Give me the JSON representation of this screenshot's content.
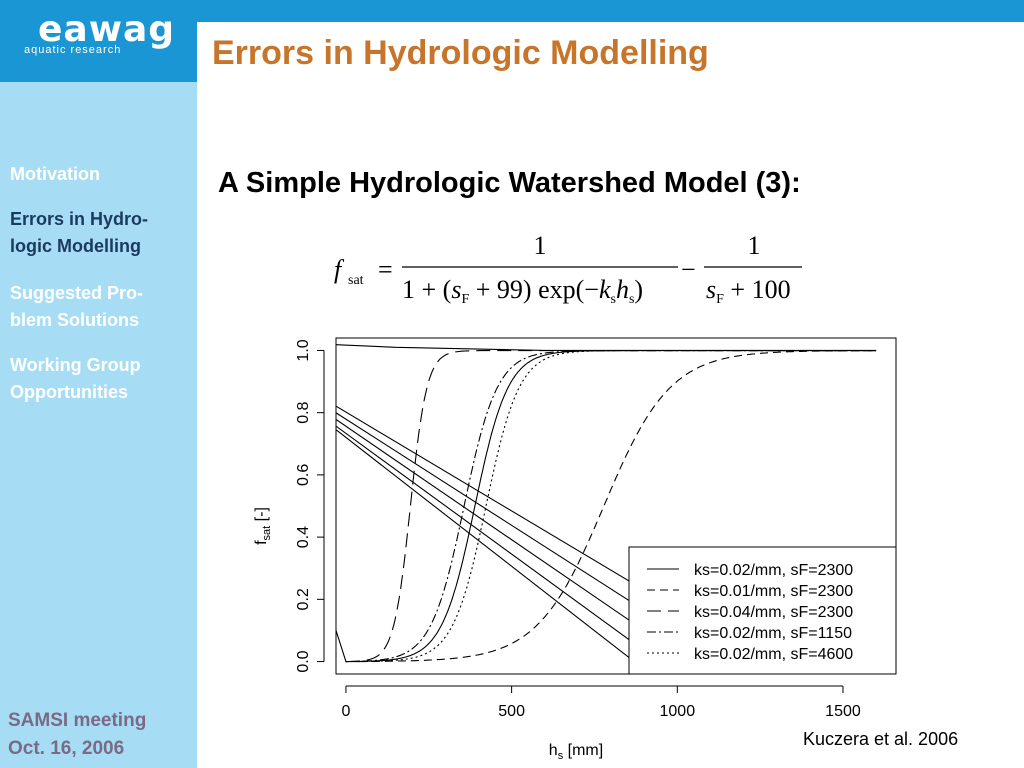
{
  "logo": {
    "name": "eawag",
    "tagline": "aquatic research"
  },
  "title": "Errors in Hydrologic Modelling",
  "sidebar": {
    "items": [
      {
        "label_lines": [
          "Motivation"
        ],
        "active": false
      },
      {
        "label_lines": [
          "Errors in Hydro-",
          "logic Modelling"
        ],
        "active": true
      },
      {
        "label_lines": [
          "Suggested Pro-",
          "blem Solutions"
        ],
        "active": false
      },
      {
        "label_lines": [
          "Working Group",
          "Opportunities"
        ],
        "active": false
      }
    ],
    "footer_lines": [
      "SAMSI meeting",
      "Oct. 16, 2006"
    ]
  },
  "subtitle": "A Simple Hydrologic Watershed Model (3):",
  "formula": {
    "lhs": "f",
    "lhs_sub": "sat",
    "equals": "=",
    "num1": "1",
    "den1_prefix": "1 + (",
    "den1_s": "s",
    "den1_s_sub": "F",
    "den1_mid": " + 99) exp(−",
    "den1_k": "k",
    "den1_k_sub": "s",
    "den1_h": "h",
    "den1_h_sub": "s",
    "den1_suffix": ")",
    "minus": "−",
    "num2": "1",
    "den2_s": "s",
    "den2_s_sub": "F",
    "den2_suffix": " + 100"
  },
  "chart_data": {
    "type": "line",
    "xlabel": "h",
    "xlabel_sub": "s",
    "xlabel_unit": " [mm]",
    "ylabel": "f",
    "ylabel_sub": "sat",
    "ylabel_unit": " [-]",
    "xlim": [
      -30,
      1660
    ],
    "ylim": [
      -0.04,
      1.04
    ],
    "xticks": [
      0,
      500,
      1000,
      1500
    ],
    "xtick_labels": [
      "0",
      "500",
      "1000",
      "1500"
    ],
    "yticks": [
      0.0,
      0.2,
      0.4,
      0.6,
      0.8,
      1.0
    ],
    "ytick_labels": [
      "0.0",
      "0.2",
      "0.4",
      "0.6",
      "0.8",
      "1.0"
    ],
    "grid": false,
    "legend_position": "bottom-right",
    "series": [
      {
        "name": "ks=0.02/mm, sF=2300",
        "ks": 0.02,
        "sF": 2300,
        "dash": "none",
        "line_start": [
          -60,
          0.84
        ],
        "line_end": [
          900,
          0.23
        ]
      },
      {
        "name": "ks=0.01/mm, sF=2300",
        "ks": 0.01,
        "sF": 2300,
        "dash": "8,5",
        "line_start": [
          -60,
          0.82
        ],
        "line_end": [
          900,
          0.165
        ]
      },
      {
        "name": "ks=0.04/mm, sF=2300",
        "ks": 0.04,
        "sF": 2300,
        "dash": "14,7",
        "line_start": [
          -60,
          0.8
        ],
        "line_end": [
          900,
          0.1
        ]
      },
      {
        "name": "ks=0.02/mm, sF=1150",
        "ks": 0.02,
        "sF": 1150,
        "dash": "9,3,2,3",
        "line_start": [
          -60,
          0.78
        ],
        "line_end": [
          900,
          0.035
        ]
      },
      {
        "name": "ks=0.02/mm, sF=4600",
        "ks": 0.02,
        "sF": 4600,
        "dash": "2,3",
        "line_start": [
          -60,
          0.77
        ],
        "line_end": [
          900,
          -0.025
        ]
      }
    ],
    "extra_line": {
      "points": [
        [
          -60,
          0.2
        ],
        [
          0,
          0.0
        ],
        [
          60,
          0.0
        ]
      ]
    }
  },
  "citation": "Kuczera et al. 2006"
}
